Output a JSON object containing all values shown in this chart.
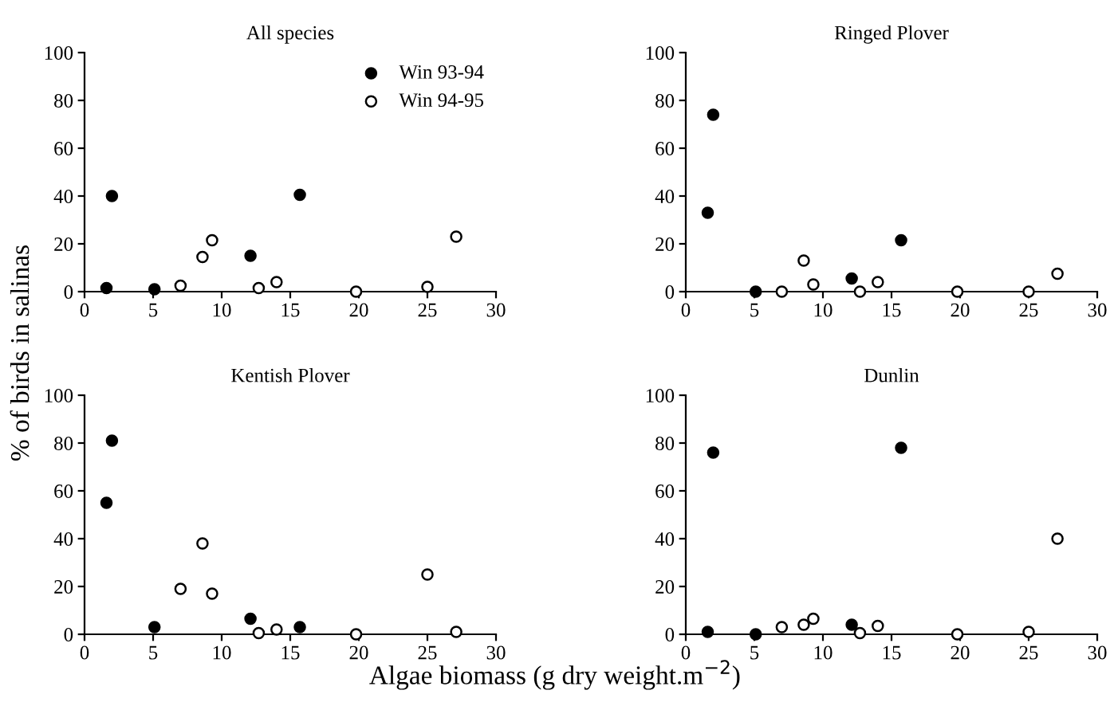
{
  "chart_data": [
    {
      "type": "scatter",
      "title": "All species",
      "ylabel": "% of birds in salinas",
      "xlim": [
        0,
        30
      ],
      "xticks": [
        0,
        5,
        10,
        15,
        20,
        25,
        30
      ],
      "ylim": [
        0,
        100
      ],
      "yticks": [
        0,
        20,
        40,
        60,
        80,
        100
      ],
      "marker": "circle",
      "grid": false,
      "legend": "top right",
      "series": [
        {
          "name": "Win 93-94",
          "color": "#000000",
          "x": [
            1.6,
            2.0,
            5.1,
            12.1,
            15.7
          ],
          "values": [
            1.5,
            40,
            1,
            15,
            40.5
          ]
        },
        {
          "name": "Win 94-95",
          "color": "#ffffff",
          "x": [
            7.0,
            8.6,
            9.3,
            12.7,
            14.0,
            19.8,
            25.0,
            27.1
          ],
          "values": [
            2.5,
            14.5,
            21.5,
            1.5,
            4,
            0,
            2,
            23
          ]
        }
      ]
    },
    {
      "type": "scatter",
      "title": "Ringed Plover",
      "xlim": [
        0,
        30
      ],
      "xticks": [
        0,
        5,
        10,
        15,
        20,
        25,
        30
      ],
      "ylim": [
        0,
        100
      ],
      "yticks": [
        0,
        20,
        40,
        60,
        80,
        100
      ],
      "marker": "circle",
      "grid": false,
      "series": [
        {
          "color": "#000000",
          "x": [
            1.6,
            2.0,
            5.1,
            12.1,
            15.7
          ],
          "values": [
            33,
            74,
            0,
            5.5,
            21.5
          ]
        },
        {
          "color": "#ffffff",
          "x": [
            7.0,
            8.6,
            9.3,
            12.7,
            14.0,
            19.8,
            25.0,
            27.1
          ],
          "values": [
            0,
            13,
            3,
            0,
            4,
            0,
            0,
            7.5
          ]
        }
      ]
    },
    {
      "type": "scatter",
      "title": "Kentish Plover",
      "xlabel": "Algae biomass (g dry weight.m$^{−2}$)",
      "xlim": [
        0,
        30
      ],
      "xticks": [
        0,
        5,
        10,
        15,
        20,
        25,
        30
      ],
      "ylim": [
        0,
        100
      ],
      "yticks": [
        0,
        20,
        40,
        60,
        80,
        100
      ],
      "marker": "circle",
      "grid": false,
      "series": [
        {
          "color": "#000000",
          "x": [
            1.6,
            2.0,
            5.1,
            12.1,
            15.7
          ],
          "values": [
            55,
            81,
            3,
            6.5,
            3
          ]
        },
        {
          "color": "#ffffff",
          "x": [
            7.0,
            8.6,
            9.3,
            12.7,
            14.0,
            19.8,
            25.0,
            27.1
          ],
          "values": [
            19,
            38,
            17,
            0.5,
            2,
            0,
            25,
            1
          ]
        }
      ]
    },
    {
      "type": "scatter",
      "title": "Dunlin",
      "xlim": [
        0,
        30
      ],
      "xticks": [
        0,
        5,
        10,
        15,
        20,
        25,
        30
      ],
      "ylim": [
        0,
        100
      ],
      "yticks": [
        0,
        20,
        40,
        60,
        80,
        100
      ],
      "marker": "circle",
      "grid": false,
      "series": [
        {
          "color": "#000000",
          "x": [
            1.6,
            2.0,
            5.1,
            12.1,
            15.7
          ],
          "values": [
            1,
            76,
            0,
            4,
            78
          ]
        },
        {
          "color": "#ffffff",
          "x": [
            7.0,
            8.6,
            9.3,
            12.7,
            14.0,
            19.8,
            25.0,
            27.1
          ],
          "values": [
            3,
            4,
            6.5,
            0.5,
            3.5,
            0,
            1,
            40
          ]
        }
      ]
    }
  ]
}
